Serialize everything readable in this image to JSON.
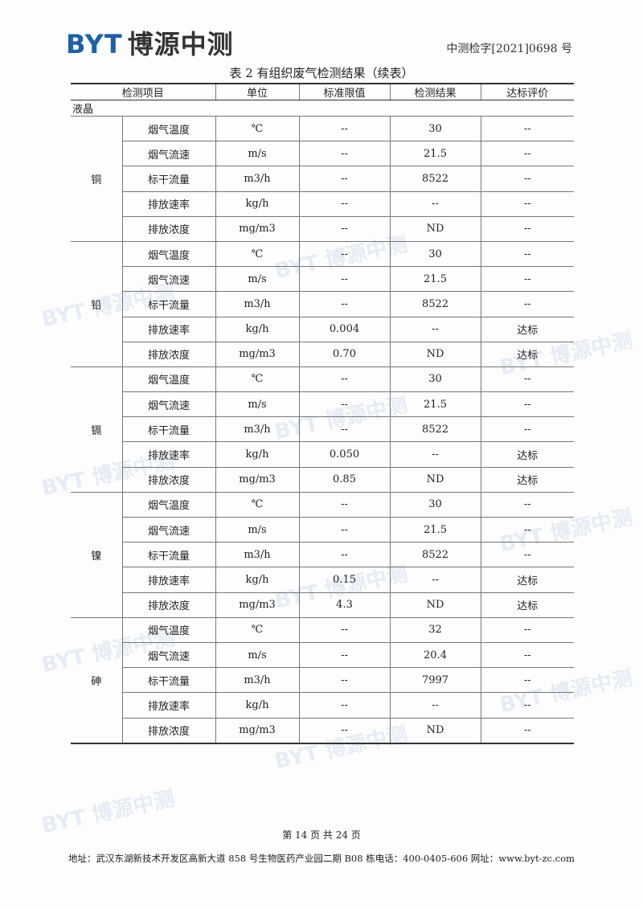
{
  "header": {
    "logo": "BYT 博源中测",
    "report_no": "中测检字[2021]0698 号"
  },
  "table": {
    "title": "表 2 有组织废气检测结果（续表）",
    "columns": [
      "检测项目",
      "单位",
      "标准限值",
      "检测结果",
      "达标评价"
    ],
    "category": "液晶",
    "groups": [
      {
        "name": "铜",
        "rows": [
          [
            "烟气温度",
            "℃",
            "--",
            "30",
            "--"
          ],
          [
            "烟气流速",
            "m/s",
            "--",
            "21.5",
            "--"
          ],
          [
            "标干流量",
            "m3/h",
            "--",
            "8522",
            "--"
          ],
          [
            "排放速率",
            "kg/h",
            "--",
            "--",
            "--"
          ],
          [
            "排放浓度",
            "mg/m3",
            "--",
            "ND",
            "--"
          ]
        ]
      },
      {
        "name": "铅",
        "rows": [
          [
            "烟气温度",
            "℃",
            "--",
            "30",
            "--"
          ],
          [
            "烟气流速",
            "m/s",
            "--",
            "21.5",
            "--"
          ],
          [
            "标干流量",
            "m3/h",
            "--",
            "8522",
            "--"
          ],
          [
            "排放速率",
            "kg/h",
            "0.004",
            "--",
            "达标"
          ],
          [
            "排放浓度",
            "mg/m3",
            "0.70",
            "ND",
            "达标"
          ]
        ]
      },
      {
        "name": "镉",
        "rows": [
          [
            "烟气温度",
            "℃",
            "--",
            "30",
            "--"
          ],
          [
            "烟气流速",
            "m/s",
            "--",
            "21.5",
            "--"
          ],
          [
            "标干流量",
            "m3/h",
            "--",
            "8522",
            "--"
          ],
          [
            "排放速率",
            "kg/h",
            "0.050",
            "--",
            "达标"
          ],
          [
            "排放浓度",
            "mg/m3",
            "0.85",
            "ND",
            "达标"
          ]
        ]
      },
      {
        "name": "镍",
        "rows": [
          [
            "烟气温度",
            "℃",
            "--",
            "30",
            "--"
          ],
          [
            "烟气流速",
            "m/s",
            "--",
            "21.5",
            "--"
          ],
          [
            "标干流量",
            "m3/h",
            "--",
            "8522",
            "--"
          ],
          [
            "排放速率",
            "kg/h",
            "0.15",
            "--",
            "达标"
          ],
          [
            "排放浓度",
            "mg/m3",
            "4.3",
            "ND",
            "达标"
          ]
        ]
      },
      {
        "name": "砷",
        "rows": [
          [
            "烟气温度",
            "℃",
            "--",
            "32",
            "--"
          ],
          [
            "烟气流速",
            "m/s",
            "--",
            "20.4",
            "--"
          ],
          [
            "标干流量",
            "m3/h",
            "--",
            "7997",
            "--"
          ],
          [
            "排放速率",
            "kg/h",
            "--",
            "--",
            "--"
          ],
          [
            "排放浓度",
            "mg/m3",
            "--",
            "ND",
            "--"
          ]
        ]
      }
    ]
  },
  "footer": {
    "page": "第 14 页 共 24 页",
    "address": "地址：武汉东湖新技术开发区高新大道 858 号生物医药产业园二期 B08 栋电话：400-0405-606 网址：www.byt-zc.com"
  }
}
